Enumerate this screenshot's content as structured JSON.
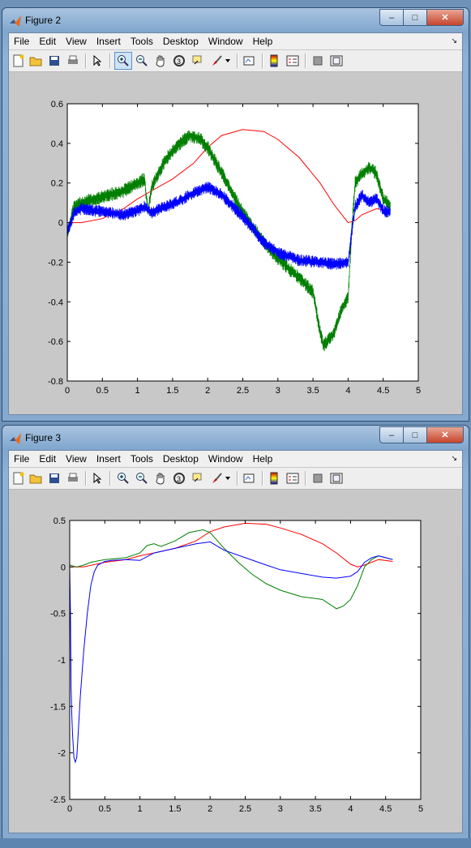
{
  "windows": [
    {
      "id": "fig2",
      "title": "Figure 2",
      "menu": [
        "File",
        "Edit",
        "View",
        "Insert",
        "Tools",
        "Desktop",
        "Window",
        "Help"
      ],
      "chart_data": {
        "type": "line",
        "xlim": [
          0,
          5
        ],
        "ylim": [
          -0.8,
          0.6
        ],
        "xticks": [
          0,
          0.5,
          1,
          1.5,
          2,
          2.5,
          3,
          3.5,
          4,
          4.5,
          5
        ],
        "yticks": [
          0.6,
          0.4,
          0.2,
          0,
          -0.2,
          -0.4,
          -0.6,
          -0.8
        ],
        "xtick_labels": [
          "0",
          "0.5",
          "1",
          "1.5",
          "2",
          "2.5",
          "3",
          "3.5",
          "4",
          "4.5",
          "5"
        ],
        "ytick_labels": [
          "0.6",
          "0.4",
          "0.2",
          "0",
          "-0.2",
          "-0.4",
          "-0.6",
          "-0.8"
        ],
        "grid": false,
        "series": [
          {
            "color": "#ff0000",
            "noise": 0,
            "x": [
              0,
              0.2,
              0.5,
              0.8,
              1.0,
              1.2,
              1.5,
              1.8,
              2.0,
              2.2,
              2.5,
              2.8,
              3.0,
              3.3,
              3.6,
              3.8,
              4.0,
              4.1,
              4.2,
              4.4,
              4.6
            ],
            "y": [
              0.0,
              0.0,
              0.02,
              0.07,
              0.12,
              0.16,
              0.22,
              0.3,
              0.38,
              0.44,
              0.47,
              0.46,
              0.42,
              0.33,
              0.2,
              0.09,
              0.0,
              0.01,
              0.04,
              0.07,
              0.06
            ]
          },
          {
            "color": "#007f00",
            "noise": 0.025,
            "x": [
              0,
              0.1,
              0.2,
              0.4,
              0.6,
              0.8,
              1.0,
              1.1,
              1.15,
              1.2,
              1.4,
              1.6,
              1.75,
              1.9,
              2.0,
              2.2,
              2.5,
              2.8,
              3.0,
              3.3,
              3.5,
              3.6,
              3.65,
              3.8,
              3.9,
              4.0,
              4.05,
              4.1,
              4.2,
              4.3,
              4.4,
              4.5,
              4.6
            ],
            "y": [
              -0.05,
              0.08,
              0.1,
              0.12,
              0.14,
              0.16,
              0.2,
              0.22,
              0.05,
              0.18,
              0.32,
              0.4,
              0.44,
              0.42,
              0.38,
              0.25,
              0.05,
              -0.1,
              -0.18,
              -0.28,
              -0.35,
              -0.55,
              -0.62,
              -0.56,
              -0.44,
              -0.38,
              -0.05,
              0.2,
              0.25,
              0.28,
              0.25,
              0.12,
              0.08
            ]
          },
          {
            "color": "#0000ff",
            "noise": 0.022,
            "x": [
              0,
              0.1,
              0.2,
              0.4,
              0.6,
              0.8,
              1.0,
              1.1,
              1.2,
              1.4,
              1.6,
              1.8,
              2.0,
              2.2,
              2.5,
              2.8,
              3.0,
              3.3,
              3.6,
              3.8,
              4.0,
              4.1,
              4.2,
              4.3,
              4.4,
              4.5,
              4.6
            ],
            "y": [
              -0.05,
              0.05,
              0.07,
              0.06,
              0.05,
              0.04,
              0.06,
              0.08,
              0.05,
              0.08,
              0.11,
              0.15,
              0.18,
              0.14,
              0.03,
              -0.1,
              -0.15,
              -0.19,
              -0.2,
              -0.21,
              -0.2,
              0.08,
              0.14,
              0.1,
              0.12,
              0.06,
              0.05
            ]
          }
        ]
      }
    },
    {
      "id": "fig3",
      "title": "Figure 3",
      "menu": [
        "File",
        "Edit",
        "View",
        "Insert",
        "Tools",
        "Desktop",
        "Window",
        "Help"
      ],
      "chart_data": {
        "type": "line",
        "xlim": [
          0,
          5
        ],
        "ylim": [
          -2.5,
          0.5
        ],
        "xticks": [
          0,
          0.5,
          1,
          1.5,
          2,
          2.5,
          3,
          3.5,
          4,
          4.5,
          5
        ],
        "yticks": [
          0.5,
          0,
          -0.5,
          -1,
          -1.5,
          -2,
          -2.5
        ],
        "xtick_labels": [
          "0",
          "0.5",
          "1",
          "1.5",
          "2",
          "2.5",
          "3",
          "3.5",
          "4",
          "4.5",
          "5"
        ],
        "ytick_labels": [
          "0.5",
          "0",
          "-0.5",
          "-1",
          "-1.5",
          "-2",
          "-2.5"
        ],
        "grid": false,
        "series": [
          {
            "color": "#ff0000",
            "noise": 0,
            "x": [
              0,
              0.2,
              0.5,
              0.8,
              1.0,
              1.2,
              1.5,
              1.8,
              2.0,
              2.2,
              2.5,
              2.8,
              3.0,
              3.3,
              3.6,
              3.8,
              4.0,
              4.1,
              4.2,
              4.4,
              4.6
            ],
            "y": [
              0.0,
              0.0,
              0.05,
              0.08,
              0.12,
              0.15,
              0.2,
              0.28,
              0.38,
              0.43,
              0.47,
              0.46,
              0.42,
              0.35,
              0.25,
              0.15,
              0.03,
              0.0,
              0.02,
              0.08,
              0.06
            ]
          },
          {
            "color": "#007f00",
            "noise": 0,
            "x": [
              0,
              0.05,
              0.1,
              0.2,
              0.3,
              0.5,
              0.8,
              1.0,
              1.1,
              1.2,
              1.3,
              1.5,
              1.7,
              1.9,
              2.0,
              2.2,
              2.4,
              2.6,
              2.8,
              3.0,
              3.3,
              3.5,
              3.6,
              3.7,
              3.8,
              3.9,
              4.0,
              4.1,
              4.2,
              4.3,
              4.4,
              4.5,
              4.6
            ],
            "y": [
              0.02,
              0.01,
              0.0,
              0.02,
              0.05,
              0.08,
              0.1,
              0.15,
              0.23,
              0.25,
              0.22,
              0.28,
              0.37,
              0.4,
              0.37,
              0.2,
              0.05,
              -0.08,
              -0.18,
              -0.25,
              -0.32,
              -0.34,
              -0.35,
              -0.4,
              -0.45,
              -0.42,
              -0.35,
              -0.2,
              0.0,
              0.08,
              0.12,
              0.1,
              0.08
            ]
          },
          {
            "color": "#0000ff",
            "noise": 0,
            "x": [
              0,
              0.01,
              0.02,
              0.03,
              0.04,
              0.06,
              0.08,
              0.1,
              0.12,
              0.15,
              0.2,
              0.25,
              0.3,
              0.35,
              0.4,
              0.5,
              0.6,
              0.8,
              1.0,
              1.2,
              1.5,
              1.8,
              2.0,
              2.2,
              2.5,
              2.8,
              3.0,
              3.3,
              3.6,
              3.8,
              4.0,
              4.1,
              4.2,
              4.3,
              4.4,
              4.5,
              4.6
            ],
            "y": [
              0,
              -0.5,
              -1.3,
              -1.6,
              -1.8,
              -2.05,
              -2.1,
              -2.05,
              -1.8,
              -1.4,
              -0.9,
              -0.5,
              -0.2,
              -0.05,
              0.02,
              0.06,
              0.07,
              0.08,
              0.07,
              0.15,
              0.2,
              0.25,
              0.27,
              0.18,
              0.1,
              0.02,
              -0.03,
              -0.07,
              -0.11,
              -0.12,
              -0.1,
              -0.05,
              0.05,
              0.1,
              0.12,
              0.1,
              0.08
            ]
          }
        ]
      }
    }
  ]
}
